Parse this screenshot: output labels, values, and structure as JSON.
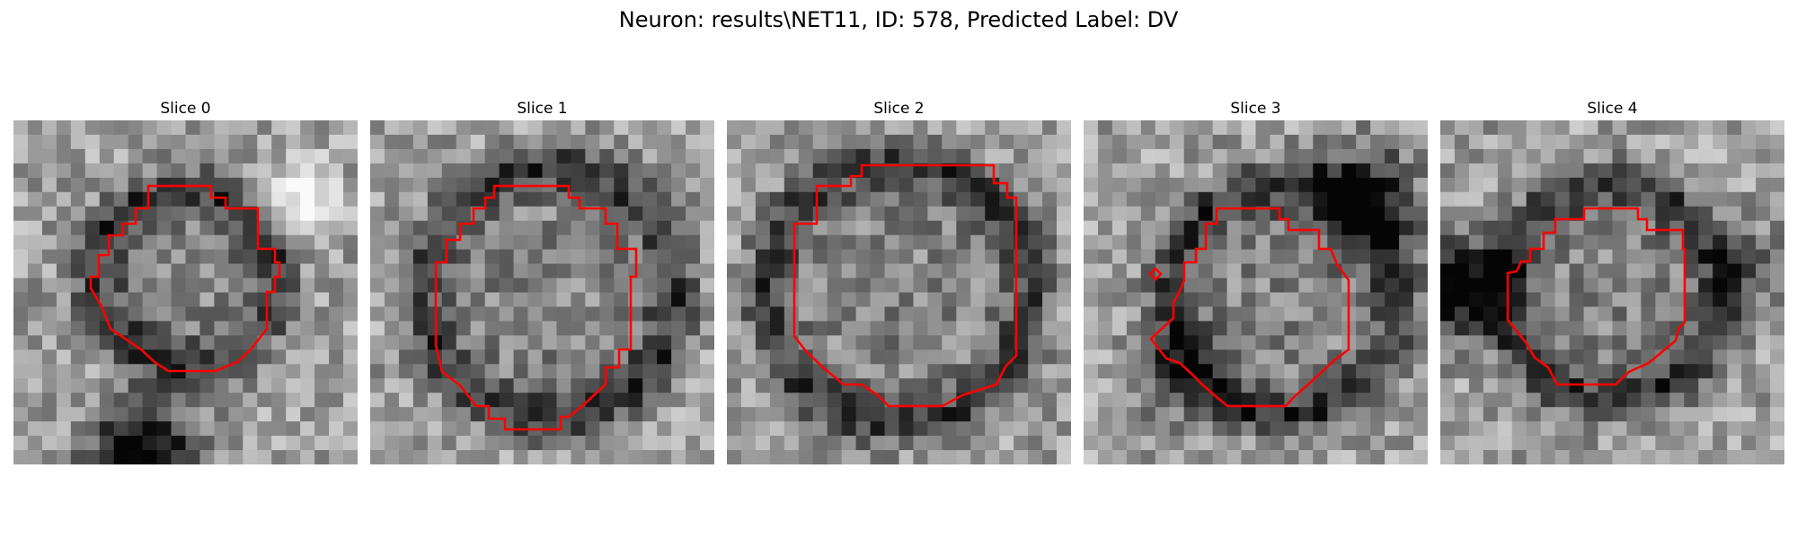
{
  "figure": {
    "title": "Neuron: results\\NET11, ID: 578, Predicted Label: DV"
  },
  "panels": [
    {
      "title": "Slice 0"
    },
    {
      "title": "Slice 1"
    },
    {
      "title": "Slice 2"
    },
    {
      "title": "Slice 3"
    },
    {
      "title": "Slice 4"
    }
  ],
  "colors": {
    "contour": "#ff0000",
    "background": "#ffffff"
  }
}
